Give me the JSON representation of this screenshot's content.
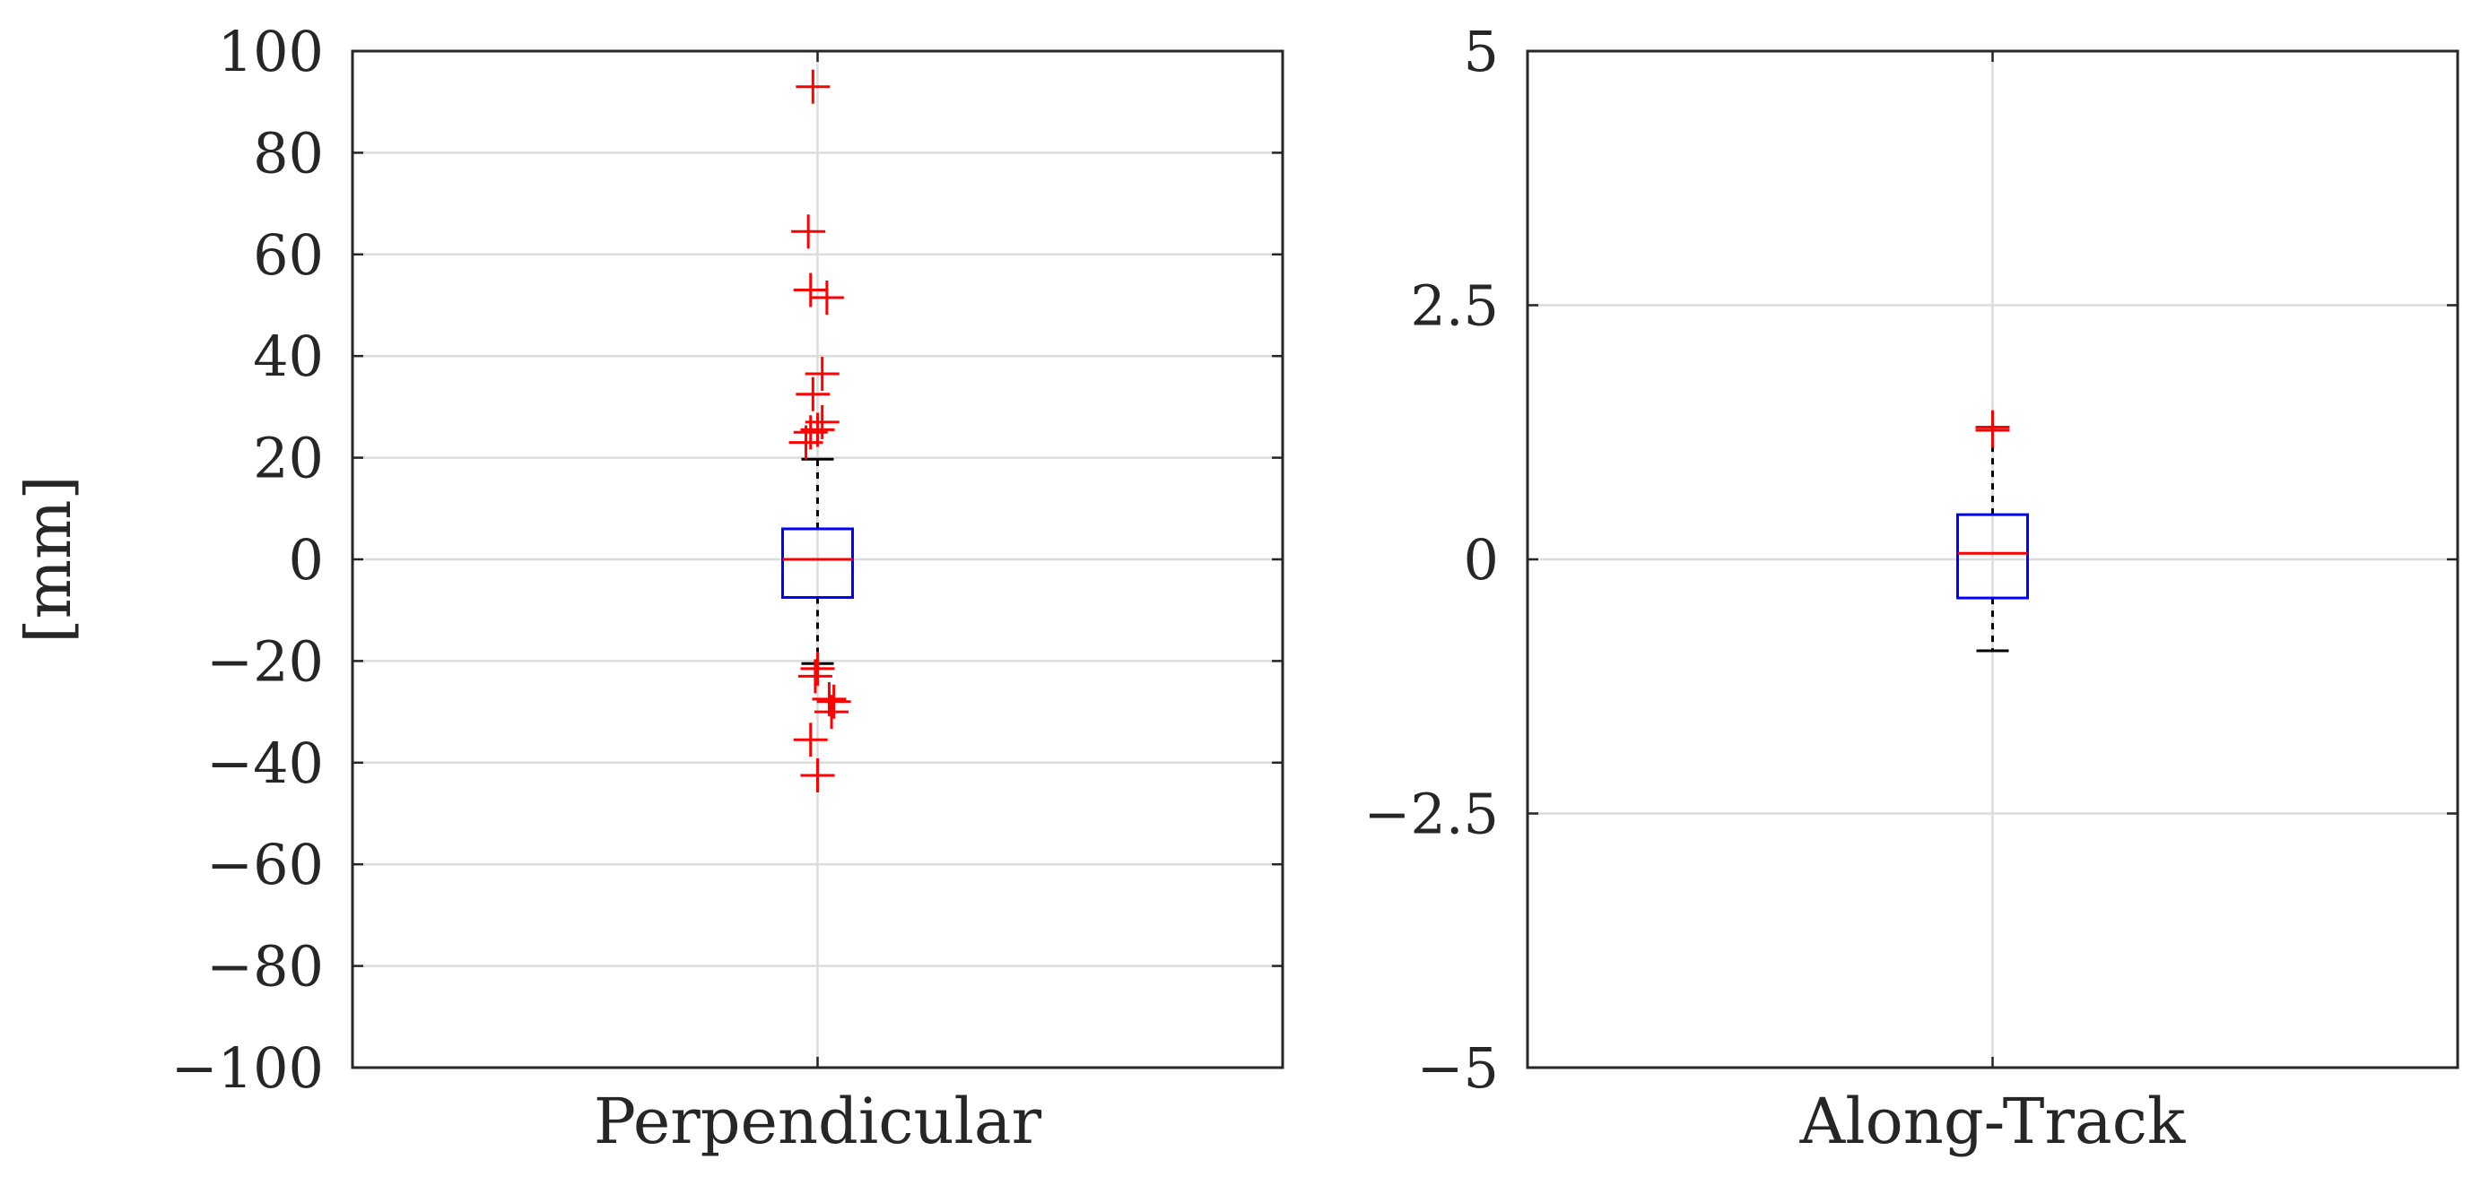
{
  "chart_data": [
    {
      "type": "box",
      "category": "Perpendicular",
      "ylabel": "[mm]",
      "ylim": [
        -100,
        100
      ],
      "yticks": [
        -100,
        -80,
        -60,
        -40,
        -20,
        0,
        20,
        40,
        60,
        80,
        100
      ],
      "ytick_labels": [
        "−100",
        "−80",
        "−60",
        "−40",
        "−20",
        "0",
        "20",
        "40",
        "60",
        "80",
        "100"
      ],
      "grid": true,
      "box": {
        "q1": -7.5,
        "median": 0,
        "q3": 6.0,
        "whisker_low": -20.5,
        "whisker_high": 19.7
      },
      "outliers": [
        {
          "x_offset": -0.02,
          "y": 93.0
        },
        {
          "x_offset": -0.04,
          "y": 64.5
        },
        {
          "x_offset": -0.03,
          "y": 53.0
        },
        {
          "x_offset": 0.04,
          "y": 51.5
        },
        {
          "x_offset": 0.02,
          "y": 36.5
        },
        {
          "x_offset": -0.02,
          "y": 32.5
        },
        {
          "x_offset": 0.02,
          "y": 27.0
        },
        {
          "x_offset": 0.0,
          "y": 25.5
        },
        {
          "x_offset": -0.03,
          "y": 25.0
        },
        {
          "x_offset": -0.05,
          "y": 23.0
        },
        {
          "x_offset": 0.0,
          "y": -21.5
        },
        {
          "x_offset": -0.01,
          "y": -23.0
        },
        {
          "x_offset": 0.05,
          "y": -27.5
        },
        {
          "x_offset": 0.07,
          "y": -28.0
        },
        {
          "x_offset": 0.06,
          "y": -30.0
        },
        {
          "x_offset": -0.03,
          "y": -35.5
        },
        {
          "x_offset": 0.0,
          "y": -42.5
        }
      ]
    },
    {
      "type": "box",
      "category": "Along-Track",
      "ylim": [
        -5,
        5
      ],
      "yticks": [
        -5,
        -2.5,
        0,
        2.5,
        5
      ],
      "ytick_labels": [
        "−5",
        "−2.5",
        "0",
        "2.5",
        "5"
      ],
      "grid": true,
      "box": {
        "q1": -0.38,
        "median": 0.06,
        "q3": 0.44,
        "whisker_low": -0.9,
        "whisker_high": 1.3
      },
      "outliers": [
        {
          "x_offset": 0.0,
          "y": 1.3
        },
        {
          "x_offset": 0.0,
          "y": 1.27
        }
      ]
    }
  ],
  "colors": {
    "box": "#0000ff",
    "median": "#ff0000",
    "outlier": "#ff0000",
    "whisker": "#000000",
    "grid": "#dcdcdc",
    "axes": "#262626"
  }
}
